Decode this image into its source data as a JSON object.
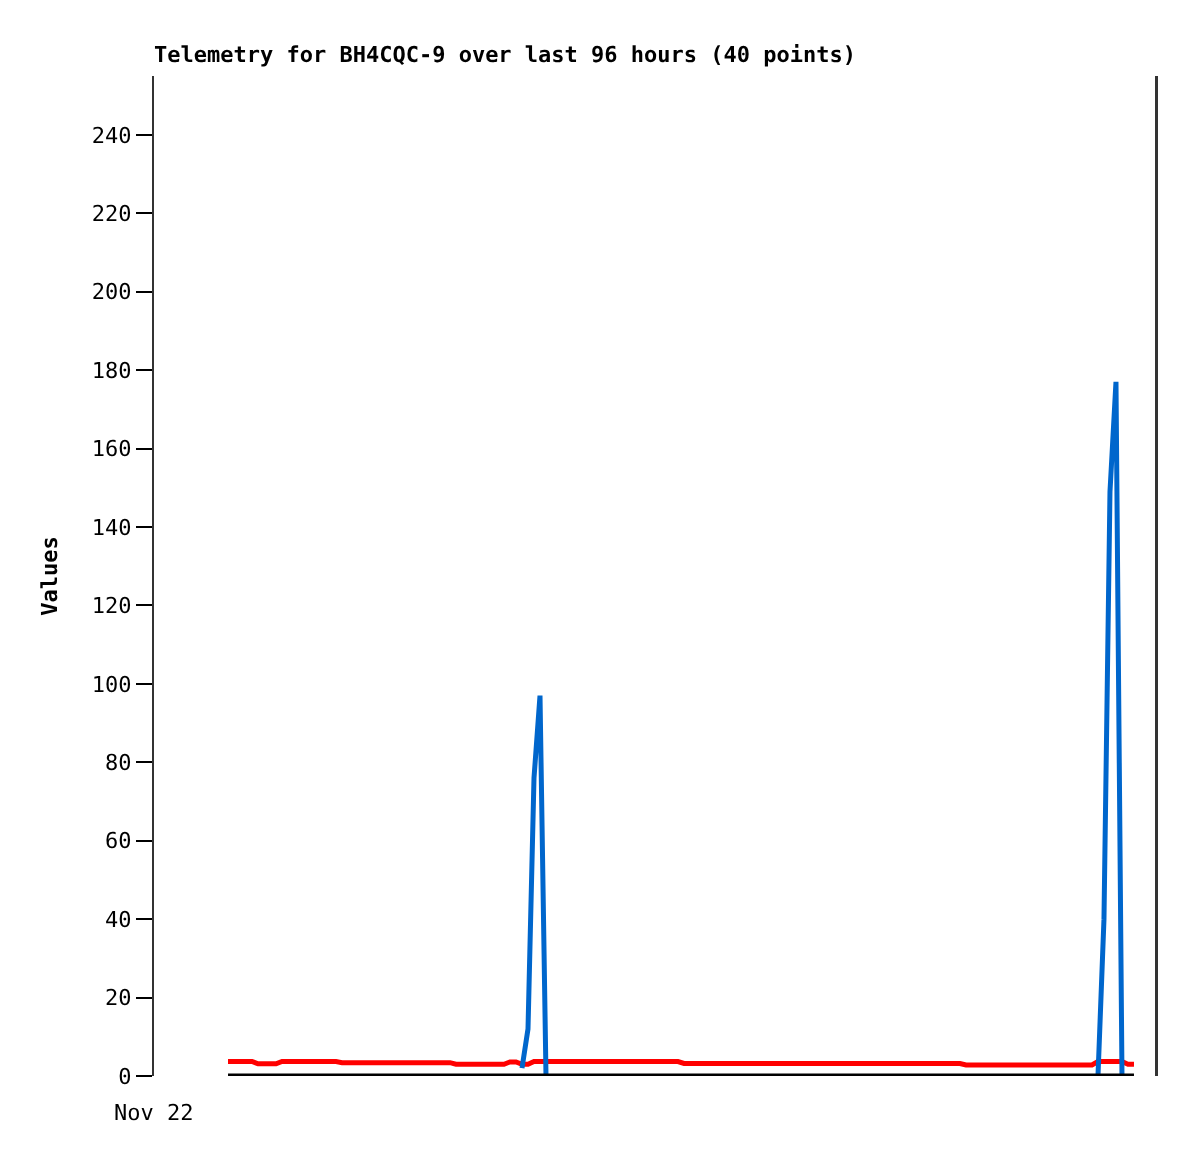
{
  "chart_data": {
    "type": "line",
    "title": "Telemetry for BH4CQC-9 over last 96 hours (40 points)",
    "ylabel": "Values",
    "annotations": [
      "Nov 22"
    ],
    "ylim": [
      0,
      255
    ],
    "yticks": [
      0,
      20,
      40,
      60,
      80,
      100,
      120,
      140,
      160,
      180,
      200,
      220,
      240
    ],
    "grid": false,
    "marker": "none",
    "line_style": "solid",
    "categories": [
      null,
      null,
      null,
      null,
      null,
      null,
      null,
      null,
      null,
      null,
      null,
      null,
      null,
      null,
      null,
      null,
      null,
      null,
      null,
      null,
      null,
      null,
      null,
      null,
      null,
      null,
      null,
      null,
      null,
      null,
      null,
      null,
      null,
      null,
      null,
      null,
      null,
      null,
      null,
      null,
      null,
      null,
      null,
      null,
      null,
      null,
      null,
      null,
      null,
      null,
      null,
      null,
      null,
      null,
      null,
      null,
      null,
      null,
      null,
      null,
      null,
      null,
      null,
      null,
      null,
      null,
      null,
      null,
      null,
      null,
      null,
      null,
      null,
      null,
      null,
      null,
      null,
      null,
      null,
      null,
      null,
      null,
      null,
      null,
      null,
      null,
      null,
      null,
      null,
      null,
      null,
      null,
      null,
      null,
      null,
      null,
      null,
      null,
      null,
      null,
      null,
      null,
      null,
      null,
      null,
      null,
      null,
      null,
      null,
      null,
      null,
      null,
      null,
      null,
      null,
      null,
      null,
      null,
      null,
      null,
      null,
      null,
      null,
      null,
      null,
      null,
      null,
      null,
      null,
      null,
      null,
      null,
      null,
      null,
      null,
      null,
      null,
      null,
      null,
      null,
      null,
      null,
      null,
      null,
      null,
      null,
      null,
      null,
      null,
      null,
      null,
      null
    ],
    "series": [
      {
        "color": "#ff0000",
        "values": [
          3.7,
          3.7,
          3.7,
          3.7,
          3.7,
          3.1,
          3.1,
          3.1,
          3.1,
          3.7,
          3.7,
          3.7,
          3.7,
          3.7,
          3.7,
          3.7,
          3.7,
          3.7,
          3.7,
          3.4,
          3.4,
          3.4,
          3.4,
          3.4,
          3.4,
          3.4,
          3.4,
          3.4,
          3.4,
          3.4,
          3.4,
          3.4,
          3.4,
          3.4,
          3.4,
          3.4,
          3.4,
          3.4,
          3,
          3,
          3,
          3,
          3,
          3,
          3,
          3,
          3,
          3.6,
          3.6,
          3,
          3,
          3.7,
          3.7,
          3.7,
          3.7,
          3.7,
          3.7,
          3.7,
          3.7,
          3.7,
          3.7,
          3.7,
          3.7,
          3.7,
          3.7,
          3.7,
          3.7,
          3.7,
          3.7,
          3.7,
          3.7,
          3.7,
          3.7,
          3.7,
          3.7,
          3.7,
          3.2,
          3.2,
          3.2,
          3.2,
          3.2,
          3.2,
          3.2,
          3.2,
          3.2,
          3.2,
          3.2,
          3.2,
          3.2,
          3.2,
          3.2,
          3.2,
          3.2,
          3.2,
          3.2,
          3.2,
          3.2,
          3.2,
          3.2,
          3.2,
          3.2,
          3.2,
          3.2,
          3.2,
          3.2,
          3.2,
          3.2,
          3.2,
          3.2,
          3.2,
          3.2,
          3.2,
          3.2,
          3.2,
          3.2,
          3.2,
          3.2,
          3.2,
          3.2,
          3.2,
          3.2,
          3.2,
          3.2,
          2.8,
          2.8,
          2.8,
          2.8,
          2.8,
          2.8,
          2.8,
          2.8,
          2.8,
          2.8,
          2.8,
          2.8,
          2.8,
          2.8,
          2.8,
          2.8,
          2.8,
          2.8,
          2.8,
          2.8,
          2.8,
          2.8,
          3.7,
          3.7,
          3.7,
          3.7,
          3.7,
          3,
          3
        ]
      },
      {
        "color": "#0066cc",
        "values": [
          null,
          null,
          null,
          null,
          null,
          null,
          null,
          null,
          null,
          null,
          null,
          null,
          null,
          null,
          null,
          null,
          null,
          null,
          null,
          null,
          null,
          null,
          null,
          null,
          null,
          null,
          null,
          null,
          null,
          null,
          null,
          null,
          null,
          null,
          null,
          null,
          null,
          null,
          null,
          null,
          null,
          null,
          null,
          null,
          null,
          null,
          null,
          null,
          null,
          2,
          12,
          76,
          97,
          0,
          null,
          null,
          null,
          null,
          null,
          null,
          null,
          null,
          null,
          null,
          null,
          null,
          null,
          null,
          null,
          null,
          null,
          null,
          null,
          null,
          null,
          null,
          null,
          null,
          null,
          null,
          null,
          null,
          null,
          null,
          null,
          null,
          null,
          null,
          null,
          null,
          null,
          null,
          null,
          null,
          null,
          null,
          null,
          null,
          null,
          null,
          null,
          null,
          null,
          null,
          null,
          null,
          null,
          null,
          null,
          null,
          null,
          null,
          null,
          null,
          null,
          null,
          null,
          null,
          null,
          null,
          null,
          null,
          null,
          null,
          null,
          null,
          null,
          null,
          null,
          null,
          null,
          null,
          null,
          null,
          null,
          null,
          null,
          null,
          null,
          null,
          null,
          null,
          null,
          null,
          null,
          0,
          40,
          149,
          177,
          0,
          null,
          null
        ]
      },
      {
        "color": "#000000",
        "values": [
          0,
          0,
          0,
          0,
          0,
          0,
          0,
          0,
          0,
          0,
          0,
          0,
          0,
          0,
          0,
          0,
          0,
          0,
          0,
          0,
          0,
          0,
          0,
          0,
          0,
          0,
          0,
          0,
          0,
          0,
          0,
          0,
          0,
          0,
          0,
          0,
          0,
          0,
          0,
          0,
          0,
          0,
          0,
          0,
          0,
          0,
          0,
          0,
          0,
          0,
          0,
          0,
          0,
          0,
          0,
          0,
          0,
          0,
          0,
          0,
          0,
          0,
          0,
          0,
          0,
          0,
          0,
          0,
          0,
          0,
          0,
          0,
          0,
          0,
          0,
          0,
          0,
          0,
          0,
          0,
          0,
          0,
          0,
          0,
          0,
          0,
          0,
          0,
          0,
          0,
          0,
          0,
          0,
          0,
          0,
          0,
          0,
          0,
          0,
          0,
          0,
          0,
          0,
          0,
          0,
          0,
          0,
          0,
          0,
          0,
          0,
          0,
          0,
          0,
          0,
          0,
          0,
          0,
          0,
          0,
          0,
          0,
          0,
          0,
          0,
          0,
          0,
          0,
          0,
          0,
          0,
          0,
          0,
          0,
          0,
          0,
          0,
          0,
          0,
          0,
          0,
          0,
          0,
          0,
          0,
          0,
          0,
          0,
          0,
          0,
          0,
          0
        ]
      }
    ]
  }
}
